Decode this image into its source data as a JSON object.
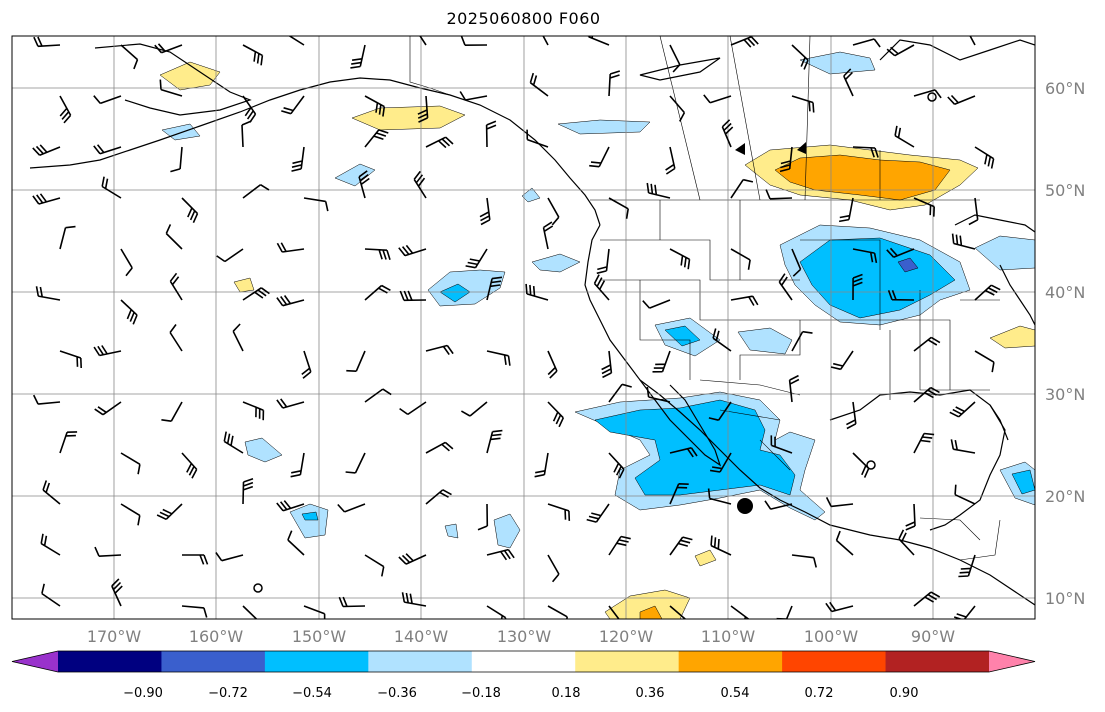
{
  "title": "2025060800 F060",
  "lon_ticks": [
    "170°W",
    "160°W",
    "150°W",
    "140°W",
    "130°W",
    "120°W",
    "110°W",
    "100°W",
    "90°W"
  ],
  "lat_ticks": [
    "60°N",
    "50°N",
    "40°N",
    "30°N",
    "20°N",
    "10°N"
  ],
  "colorbar": {
    "ticks": [
      "−0.90",
      "−0.72",
      "−0.54",
      "−0.36",
      "−0.18",
      "0.18",
      "0.36",
      "0.54",
      "0.72",
      "0.90"
    ],
    "colors": [
      "#9932CC",
      "#000080",
      "#3A5FCD",
      "#00BFFF",
      "#B0E2FF",
      "#FFFFFF",
      "#FFEC8B",
      "#FFA500",
      "#FF4500",
      "#B22222",
      "#FF82AB"
    ]
  },
  "contour_colors": {
    "neg_light": "#B0E2FF",
    "neg_mid": "#00BFFF",
    "neg_strong": "#3A5FCD",
    "pos_light": "#FFEC8B",
    "pos_mid": "#FFA500"
  },
  "label_color": "#808080"
}
